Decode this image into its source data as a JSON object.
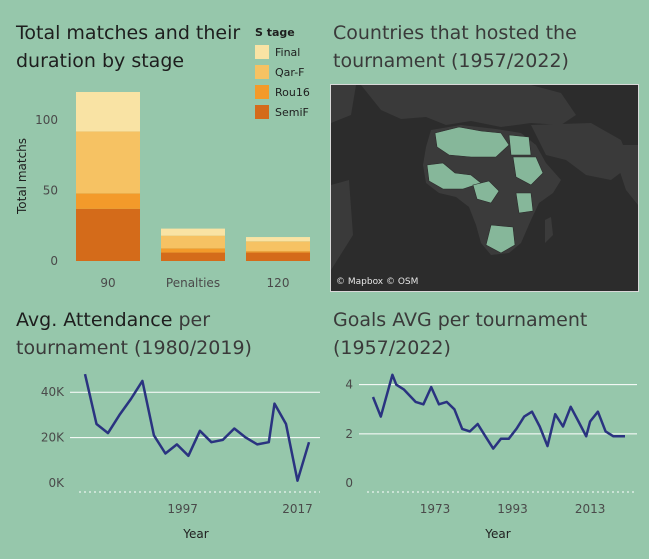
{
  "titles": {
    "stage_chart": "Total matches and their duration by stage",
    "map": "Countries that hosted the tournament (1957/2022)",
    "attendance_bold": "Avg. Attendance",
    "attendance_rest": " per tournament (1980/2019)",
    "goals": "Goals AVG per  tournament (1957/2022)"
  },
  "map_credit": "© Mapbox © OSM",
  "colors": {
    "background": "#96c7ab",
    "Final": "#f9e3a4",
    "Qar-F": "#f6c263",
    "Rou16": "#f39a2a",
    "SemiF": "#d46b1a",
    "line": "#2a3380",
    "map_bg": "#2c2c2c",
    "map_host": "#86b79a"
  },
  "chart_data": [
    {
      "type": "bar",
      "stacked": true,
      "title": "Total matches and their duration by stage",
      "legend_title": "S tage",
      "legend_position": "top-right",
      "categories": [
        "90",
        "Penalties",
        "120"
      ],
      "series": [
        {
          "name": "SemiF",
          "values": [
            37,
            6,
            6
          ]
        },
        {
          "name": "Rou16",
          "values": [
            11,
            3,
            1
          ]
        },
        {
          "name": "Qar-F",
          "values": [
            44,
            9,
            7
          ]
        },
        {
          "name": "Final",
          "values": [
            28,
            5,
            3
          ]
        }
      ],
      "ylabel": "Total matchs",
      "xlabel": "",
      "ylim": [
        0,
        120
      ],
      "yticks": [
        0,
        50,
        100
      ],
      "grid": false
    },
    {
      "type": "line",
      "title": "Avg. Attendance per tournament (1980/2019)",
      "xlabel": "Year",
      "ylabel": "",
      "x": [
        1980,
        1982,
        1984,
        1986,
        1988,
        1990,
        1992,
        1994,
        1996,
        1998,
        2000,
        2002,
        2004,
        2006,
        2008,
        2010,
        2012,
        2013,
        2015,
        2017,
        2019
      ],
      "y": [
        48000,
        26000,
        22000,
        30000,
        37000,
        45000,
        21000,
        13000,
        17000,
        12000,
        23000,
        18000,
        19000,
        24000,
        20000,
        17000,
        18000,
        35000,
        26000,
        1000,
        18000
      ],
      "xticks": [
        "1997",
        "2017"
      ],
      "yticks": [
        "0K",
        "20K",
        "40K"
      ],
      "ylim": [
        0,
        52000
      ],
      "grid": true
    },
    {
      "type": "line",
      "title": "Goals AVG per  tournament (1957/2022)",
      "xlabel": "Year",
      "ylabel": "",
      "x": [
        1957,
        1959,
        1962,
        1963,
        1965,
        1968,
        1970,
        1972,
        1974,
        1976,
        1978,
        1980,
        1982,
        1984,
        1986,
        1988,
        1990,
        1992,
        1994,
        1996,
        1998,
        2000,
        2002,
        2004,
        2006,
        2008,
        2010,
        2012,
        2013,
        2015,
        2017,
        2019,
        2021,
        2022
      ],
      "y": [
        3.5,
        2.7,
        4.4,
        4.0,
        3.8,
        3.3,
        3.2,
        3.9,
        3.2,
        3.3,
        3.0,
        2.2,
        2.1,
        2.4,
        1.9,
        1.4,
        1.8,
        1.8,
        2.2,
        2.7,
        2.9,
        2.3,
        1.5,
        2.8,
        2.3,
        3.1,
        2.5,
        1.9,
        2.5,
        2.9,
        2.1,
        1.9,
        1.9,
        1.9
      ],
      "xticks": [
        "1973",
        "1993",
        "2013"
      ],
      "yticks": [
        "0",
        "2",
        "4"
      ],
      "ylim": [
        0,
        4.8
      ],
      "grid": true
    }
  ]
}
